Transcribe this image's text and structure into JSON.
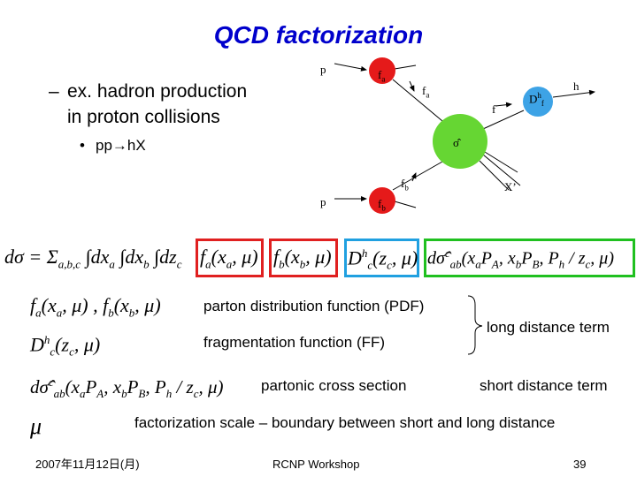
{
  "title": "QCD factorization",
  "bullet_lines": [
    "ex. hadron production",
    "in proton collisions"
  ],
  "sub_bullet": "pp→hX",
  "diagram": {
    "labels": [
      [
        "p"
      ],
      [
        "f",
        {
          "sub": "a"
        }
      ],
      [
        "f",
        {
          "sub": "a"
        }
      ],
      [
        "f"
      ],
      [
        "D",
        {
          "sup": "h"
        },
        {
          "sub": "f"
        }
      ],
      [
        "h"
      ],
      [
        "σ̂"
      ],
      [
        "X’"
      ],
      [
        "f",
        {
          "sub": "b"
        }
      ],
      [
        "f",
        {
          "sub": "b"
        }
      ],
      [
        "p"
      ]
    ]
  },
  "equation": {
    "lead": [
      "dσ = Σ",
      {
        "sub": "a,b,c"
      },
      " ∫dx",
      {
        "sub": "a"
      },
      " ∫dx",
      {
        "sub": "b"
      },
      " ∫dz",
      {
        "sub": "c"
      }
    ],
    "boxes": [
      [
        "f",
        {
          "sub": "a"
        },
        "(x",
        {
          "sub": "a"
        },
        ", μ)"
      ],
      [
        "f",
        {
          "sub": "b"
        },
        "(x",
        {
          "sub": "b"
        },
        ", μ)"
      ],
      [
        "D",
        {
          "sup": "h"
        },
        {
          "sub": "c"
        },
        "(z",
        {
          "sub": "c"
        },
        ", μ)"
      ],
      [
        "dσ̂",
        {
          "sup": "c"
        },
        {
          "sub": "ab"
        },
        "(x",
        {
          "sub": "a"
        },
        "P",
        {
          "sub": "A"
        },
        ", x",
        {
          "sub": "b"
        },
        "P",
        {
          "sub": "B"
        },
        ", P",
        {
          "sub": "h"
        },
        " / z",
        {
          "sub": "c"
        },
        ", μ)"
      ]
    ]
  },
  "rows": [
    {
      "formula": [
        "f",
        {
          "sub": "a"
        },
        "(x",
        {
          "sub": "a"
        },
        ", μ) , f",
        {
          "sub": "b"
        },
        "(x",
        {
          "sub": "b"
        },
        ", μ)"
      ],
      "description": "parton distribution function (PDF)"
    },
    {
      "formula": [
        "D",
        {
          "sup": "h"
        },
        {
          "sub": "c"
        },
        "(z",
        {
          "sub": "c"
        },
        ", μ)"
      ],
      "description": "fragmentation function (FF)"
    },
    {
      "formula": [
        "dσ̂",
        {
          "sup": "c"
        },
        {
          "sub": "ab"
        },
        "(x",
        {
          "sub": "a"
        },
        "P",
        {
          "sub": "A"
        },
        ", x",
        {
          "sub": "b"
        },
        "P",
        {
          "sub": "B"
        },
        ", P",
        {
          "sub": "h"
        },
        " / z",
        {
          "sub": "c"
        },
        ", μ)"
      ],
      "description": "partonic cross section",
      "term": "short distance term"
    },
    {
      "formula": [
        "μ"
      ],
      "description": "factorization scale – boundary between short and long distance"
    }
  ],
  "long_term": "long distance term",
  "footer": {
    "date": "2007年11月12日(月)",
    "event": "RCNP Workshop",
    "page": "39"
  }
}
